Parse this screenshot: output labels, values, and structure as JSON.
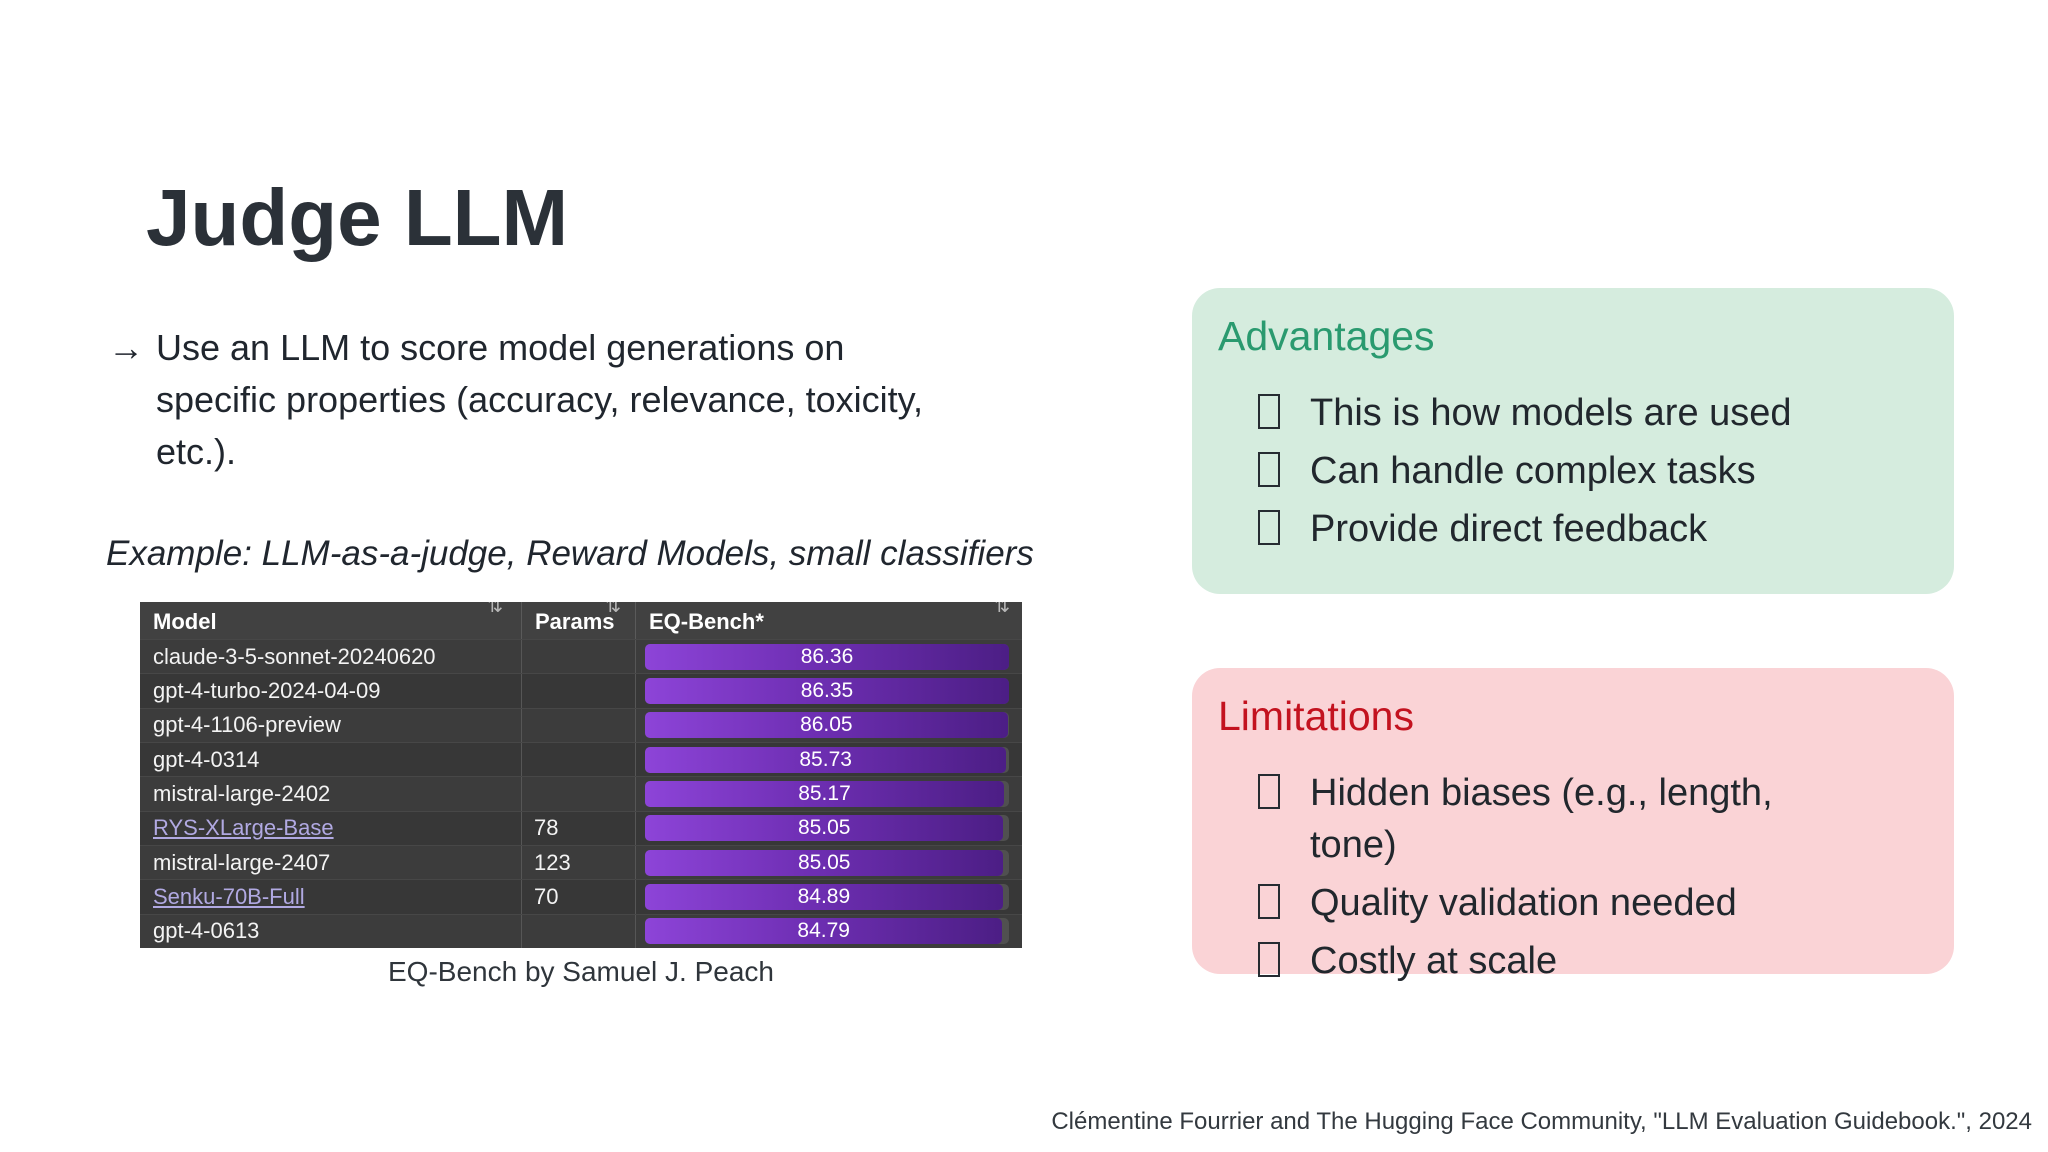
{
  "slide": {
    "title": "Judge LLM"
  },
  "main_point": {
    "marker": "→",
    "text": "Use an LLM to score model generations on specific properties (accuracy, relevance, toxicity, etc.)."
  },
  "example": "Example: LLM-as-a-judge, Reward Models, small classifiers",
  "leaderboard": {
    "columns": [
      "Model",
      "Params",
      "EQ-Bench*"
    ],
    "sort_icon": "⇅",
    "max_score": 86.36,
    "rows": [
      {
        "model": "claude-3-5-sonnet-20240620",
        "params": "",
        "score": 86.36,
        "is_link": false
      },
      {
        "model": "gpt-4-turbo-2024-04-09",
        "params": "",
        "score": 86.35,
        "is_link": false
      },
      {
        "model": "gpt-4-1106-preview",
        "params": "",
        "score": 86.05,
        "is_link": false
      },
      {
        "model": "gpt-4-0314",
        "params": "",
        "score": 85.73,
        "is_link": false
      },
      {
        "model": "mistral-large-2402",
        "params": "",
        "score": 85.17,
        "is_link": false
      },
      {
        "model": "RYS-XLarge-Base",
        "params": "78",
        "score": 85.05,
        "is_link": true
      },
      {
        "model": "mistral-large-2407",
        "params": "123",
        "score": 85.05,
        "is_link": false
      },
      {
        "model": "Senku-70B-Full",
        "params": "70",
        "score": 84.89,
        "is_link": true
      },
      {
        "model": "gpt-4-0613",
        "params": "",
        "score": 84.79,
        "is_link": false
      }
    ],
    "caption": "EQ-Bench by Samuel J. Peach",
    "bar_color_left": "#8d44d8",
    "bar_color_right": "#4c1e85"
  },
  "advantages": {
    "heading": "Advantages",
    "heading_color": "#2a9a6f",
    "box_color": "#d5ecde",
    "items": [
      "This is how models are used",
      "Can handle complex tasks",
      "Provide direct feedback"
    ]
  },
  "limitations": {
    "heading": "Limitations",
    "heading_color": "#c3121f",
    "box_color": "#fad3d6",
    "items": [
      "Hidden biases (e.g., length, tone)",
      "Quality validation needed",
      "Costly at scale"
    ]
  },
  "citation": "Clémentine Fourrier and The Hugging Face Community, \"LLM Evaluation Guidebook.\", 2024"
}
